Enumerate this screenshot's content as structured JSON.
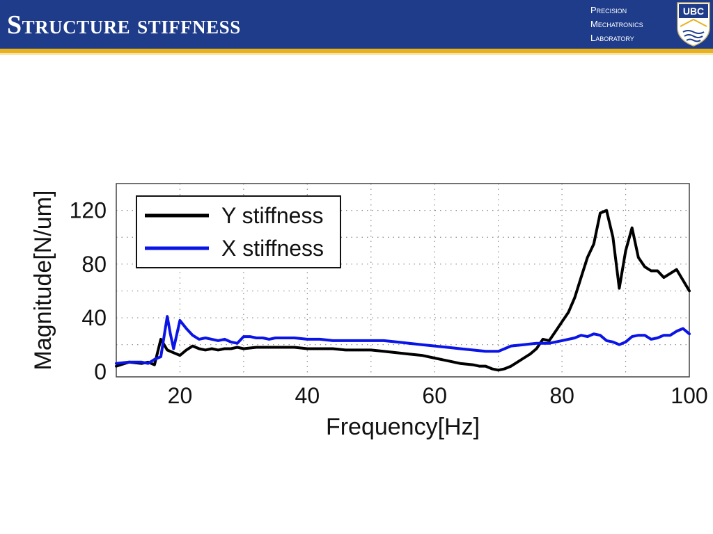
{
  "slide": {
    "title": "Structure stiffness",
    "lab": {
      "line1": "Precision",
      "line2": "Mechatronics",
      "line3": "Laboratory"
    },
    "logo_text": "UBC",
    "colors": {
      "header": "#1e3c8a",
      "rule": "#e8b21c"
    }
  },
  "chart_data": {
    "type": "line",
    "title": "",
    "xlabel": "Frequency[Hz]",
    "ylabel": "Magnitude[N/um]",
    "xlim": [
      10,
      100
    ],
    "ylim": [
      -4,
      140
    ],
    "xticks": [
      20,
      40,
      60,
      80,
      100
    ],
    "yticks": [
      0,
      40,
      80,
      120
    ],
    "grid": true,
    "legend_position": "top-left",
    "series": [
      {
        "name": "Y stiffness",
        "color": "#000000",
        "x": [
          10,
          12,
          14,
          15,
          16,
          17,
          18,
          19,
          20,
          21,
          22,
          23,
          24,
          25,
          26,
          27,
          28,
          29,
          30,
          32,
          34,
          36,
          38,
          40,
          42,
          44,
          46,
          48,
          50,
          52,
          54,
          56,
          58,
          60,
          62,
          64,
          66,
          67,
          68,
          69,
          70,
          71,
          72,
          73,
          74,
          75,
          76,
          77,
          78,
          79,
          80,
          81,
          82,
          83,
          84,
          85,
          86,
          87,
          88,
          89,
          90,
          91,
          92,
          93,
          94,
          95,
          96,
          97,
          98,
          99,
          100
        ],
        "y": [
          4,
          7,
          6,
          7,
          5,
          24,
          16,
          14,
          12,
          16,
          19,
          17,
          16,
          17,
          16,
          17,
          17,
          18,
          17,
          18,
          18,
          18,
          18,
          17,
          17,
          17,
          16,
          16,
          16,
          15,
          14,
          13,
          12,
          10,
          8,
          6,
          5,
          4,
          4,
          2,
          1,
          2,
          4,
          7,
          10,
          13,
          17,
          24,
          23,
          30,
          37,
          44,
          55,
          70,
          85,
          95,
          118,
          120,
          100,
          62,
          90,
          107,
          85,
          78,
          75,
          75,
          70,
          73,
          76,
          68,
          60
        ]
      },
      {
        "name": "X stiffness",
        "color": "#0a14e6",
        "x": [
          10,
          12,
          14,
          15,
          16,
          17,
          18,
          18.5,
          19,
          20,
          21,
          22,
          23,
          24,
          25,
          26,
          27,
          28,
          29,
          30,
          31,
          32,
          33,
          34,
          35,
          36,
          38,
          40,
          42,
          44,
          46,
          48,
          50,
          52,
          54,
          56,
          58,
          60,
          62,
          64,
          66,
          68,
          70,
          72,
          74,
          76,
          78,
          80,
          82,
          83,
          84,
          85,
          86,
          87,
          88,
          89,
          90,
          91,
          92,
          93,
          94,
          95,
          96,
          97,
          98,
          99,
          100
        ],
        "y": [
          6,
          7,
          7,
          6,
          9,
          11,
          41,
          28,
          17,
          38,
          32,
          27,
          24,
          25,
          24,
          23,
          24,
          22,
          21,
          26,
          26,
          25,
          25,
          24,
          25,
          25,
          25,
          24,
          24,
          23,
          23,
          23,
          23,
          23,
          22,
          21,
          20,
          19,
          18,
          17,
          16,
          15,
          15,
          19,
          20,
          21,
          21,
          23,
          25,
          27,
          26,
          28,
          27,
          23,
          22,
          20,
          22,
          26,
          27,
          27,
          24,
          25,
          27,
          27,
          30,
          32,
          28
        ]
      }
    ]
  }
}
